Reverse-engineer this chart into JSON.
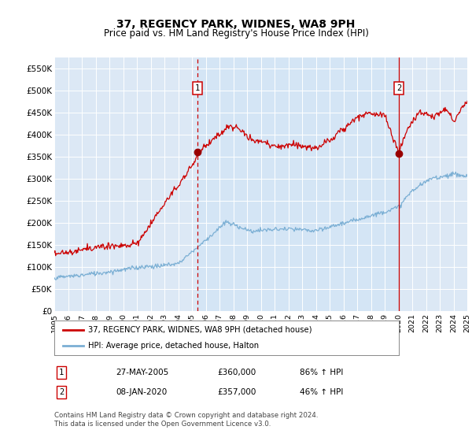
{
  "title": "37, REGENCY PARK, WIDNES, WA8 9PH",
  "subtitle": "Price paid vs. HM Land Registry's House Price Index (HPI)",
  "title_fontsize": 10,
  "subtitle_fontsize": 8.5,
  "plot_bg_color": "#dce8f5",
  "fig_bg_color": "#ffffff",
  "ylim": [
    0,
    575000
  ],
  "yticks": [
    0,
    50000,
    100000,
    150000,
    200000,
    250000,
    300000,
    350000,
    400000,
    450000,
    500000,
    550000
  ],
  "ytick_labels": [
    "£0",
    "£50K",
    "£100K",
    "£150K",
    "£200K",
    "£250K",
    "£300K",
    "£350K",
    "£400K",
    "£450K",
    "£500K",
    "£550K"
  ],
  "x_start_year": 1995,
  "x_end_year": 2025,
  "hpi_line_color": "#7bafd4",
  "price_line_color": "#cc0000",
  "marker_color": "#990000",
  "sale1_year": 2005.38,
  "sale1_price": 360000,
  "sale2_year": 2020.03,
  "sale2_price": 357000,
  "legend_label1": "37, REGENCY PARK, WIDNES, WA8 9PH (detached house)",
  "legend_label2": "HPI: Average price, detached house, Halton",
  "annotation1_label": "27-MAY-2005",
  "annotation1_price": "£360,000",
  "annotation1_hpi": "86% ↑ HPI",
  "annotation2_label": "08-JAN-2020",
  "annotation2_price": "£357,000",
  "annotation2_hpi": "46% ↑ HPI",
  "footer": "Contains HM Land Registry data © Crown copyright and database right 2024.\nThis data is licensed under the Open Government Licence v3.0.",
  "grid_color": "#ffffff",
  "vline_color": "#cc0000",
  "shaded_region_color": "#d0e4f5"
}
